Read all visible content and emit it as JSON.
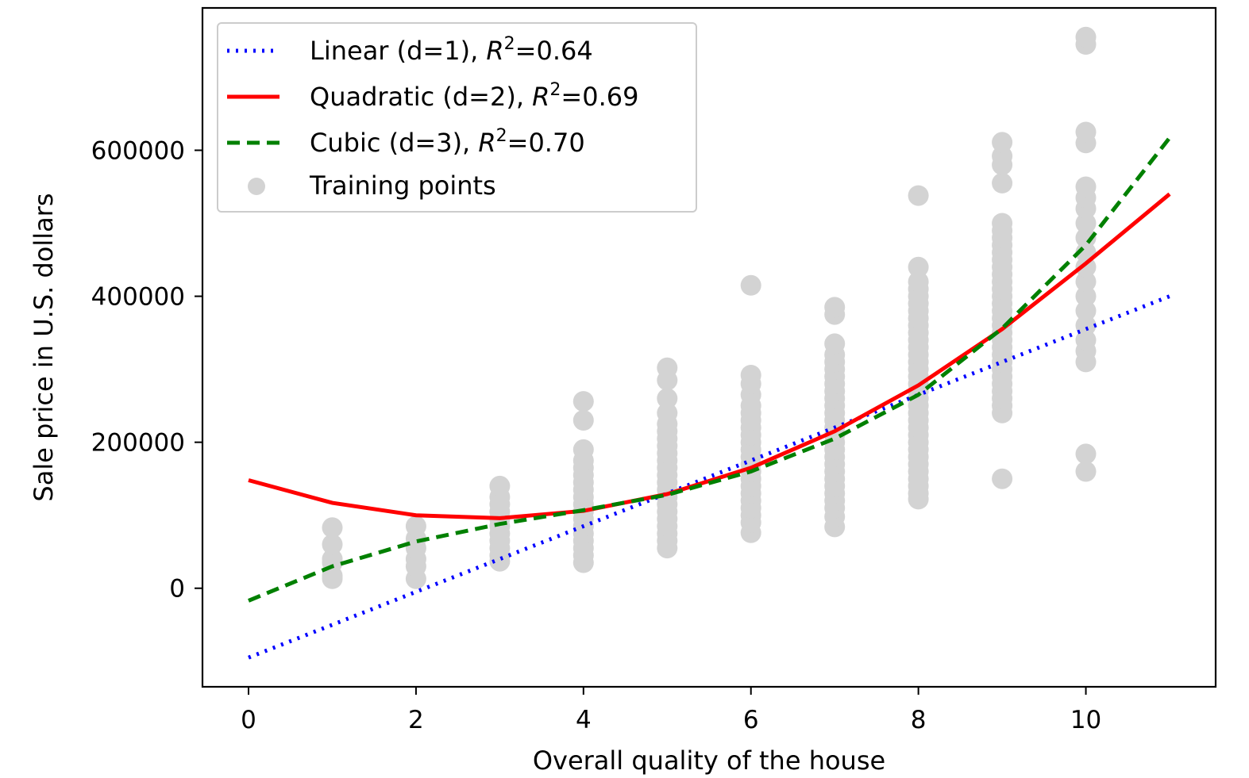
{
  "chart_data": {
    "type": "scatter",
    "xlabel": "Overall quality of the house",
    "ylabel": "Sale price in U.S. dollars",
    "xlim": [
      -0.55,
      11.55
    ],
    "ylim": [
      -135000,
      795000
    ],
    "xticks": [
      0,
      2,
      4,
      6,
      8,
      10
    ],
    "yticks": [
      0,
      200000,
      400000,
      600000
    ],
    "grid": false,
    "legend_position": "top-left",
    "series": [
      {
        "name": "Linear (d=1), R²=0.64",
        "legend_prefix": "Linear (d=1), ",
        "legend_r2": "=0.64",
        "kind": "line",
        "style": "dotted",
        "color": "#0000ff",
        "x": [
          0,
          1,
          2,
          3,
          4,
          5,
          6,
          7,
          8,
          9,
          10,
          11
        ],
        "y": [
          -95000,
          -50000,
          -5000,
          40000,
          85000,
          130000,
          175000,
          220000,
          265000,
          310000,
          355000,
          400000
        ]
      },
      {
        "name": "Quadratic (d=2), R²=0.69",
        "legend_prefix": "Quadratic (d=2), ",
        "legend_r2": "=0.69",
        "kind": "line",
        "style": "solid",
        "color": "#ff0000",
        "x": [
          0,
          1,
          2,
          3,
          4,
          5,
          6,
          7,
          8,
          9,
          10,
          11
        ],
        "y": [
          148000,
          117000,
          100000,
          96000,
          106000,
          129000,
          165000,
          215000,
          278000,
          355000,
          445000,
          540000
        ]
      },
      {
        "name": "Cubic (d=3), R²=0.70",
        "legend_prefix": "Cubic (d=3), ",
        "legend_r2": "=0.70",
        "kind": "line",
        "style": "dashed",
        "color": "#008000",
        "x": [
          0,
          1,
          2,
          3,
          4,
          5,
          6,
          7,
          8,
          9,
          10,
          11
        ],
        "y": [
          -17000,
          30000,
          64000,
          88000,
          107000,
          128000,
          160000,
          205000,
          265000,
          356000,
          470000,
          617000
        ]
      },
      {
        "name": "Training points",
        "kind": "scatter",
        "color": "#d3d3d3",
        "points": [
          [
            1,
            13000
          ],
          [
            1,
            17000
          ],
          [
            1,
            35000
          ],
          [
            1,
            40000
          ],
          [
            1,
            60000
          ],
          [
            1,
            83000
          ],
          [
            2,
            13000
          ],
          [
            2,
            30000
          ],
          [
            2,
            40000
          ],
          [
            2,
            55000
          ],
          [
            2,
            68000
          ],
          [
            2,
            85000
          ],
          [
            3,
            37000
          ],
          [
            3,
            45000
          ],
          [
            3,
            55000
          ],
          [
            3,
            65000
          ],
          [
            3,
            75000
          ],
          [
            3,
            85000
          ],
          [
            3,
            95000
          ],
          [
            3,
            105000
          ],
          [
            3,
            115000
          ],
          [
            3,
            125000
          ],
          [
            3,
            140000
          ],
          [
            4,
            35000
          ],
          [
            4,
            45000
          ],
          [
            4,
            55000
          ],
          [
            4,
            65000
          ],
          [
            4,
            75000
          ],
          [
            4,
            85000
          ],
          [
            4,
            95000
          ],
          [
            4,
            105000
          ],
          [
            4,
            115000
          ],
          [
            4,
            125000
          ],
          [
            4,
            135000
          ],
          [
            4,
            145000
          ],
          [
            4,
            155000
          ],
          [
            4,
            165000
          ],
          [
            4,
            175000
          ],
          [
            4,
            190000
          ],
          [
            4,
            230000
          ],
          [
            4,
            256000
          ],
          [
            5,
            55000
          ],
          [
            5,
            65000
          ],
          [
            5,
            75000
          ],
          [
            5,
            85000
          ],
          [
            5,
            95000
          ],
          [
            5,
            105000
          ],
          [
            5,
            115000
          ],
          [
            5,
            125000
          ],
          [
            5,
            135000
          ],
          [
            5,
            145000
          ],
          [
            5,
            155000
          ],
          [
            5,
            165000
          ],
          [
            5,
            175000
          ],
          [
            5,
            185000
          ],
          [
            5,
            195000
          ],
          [
            5,
            205000
          ],
          [
            5,
            215000
          ],
          [
            5,
            225000
          ],
          [
            5,
            240000
          ],
          [
            5,
            260000
          ],
          [
            5,
            285000
          ],
          [
            5,
            302000
          ],
          [
            6,
            76000
          ],
          [
            6,
            90000
          ],
          [
            6,
            100000
          ],
          [
            6,
            110000
          ],
          [
            6,
            120000
          ],
          [
            6,
            130000
          ],
          [
            6,
            140000
          ],
          [
            6,
            150000
          ],
          [
            6,
            160000
          ],
          [
            6,
            170000
          ],
          [
            6,
            180000
          ],
          [
            6,
            190000
          ],
          [
            6,
            200000
          ],
          [
            6,
            210000
          ],
          [
            6,
            220000
          ],
          [
            6,
            230000
          ],
          [
            6,
            240000
          ],
          [
            6,
            250000
          ],
          [
            6,
            265000
          ],
          [
            6,
            280000
          ],
          [
            6,
            292000
          ],
          [
            6,
            415000
          ],
          [
            7,
            84000
          ],
          [
            7,
            98000
          ],
          [
            7,
            110000
          ],
          [
            7,
            120000
          ],
          [
            7,
            130000
          ],
          [
            7,
            140000
          ],
          [
            7,
            150000
          ],
          [
            7,
            160000
          ],
          [
            7,
            170000
          ],
          [
            7,
            180000
          ],
          [
            7,
            190000
          ],
          [
            7,
            200000
          ],
          [
            7,
            210000
          ],
          [
            7,
            220000
          ],
          [
            7,
            230000
          ],
          [
            7,
            240000
          ],
          [
            7,
            250000
          ],
          [
            7,
            260000
          ],
          [
            7,
            270000
          ],
          [
            7,
            280000
          ],
          [
            7,
            290000
          ],
          [
            7,
            300000
          ],
          [
            7,
            310000
          ],
          [
            7,
            320000
          ],
          [
            7,
            335000
          ],
          [
            7,
            375000
          ],
          [
            7,
            385000
          ],
          [
            8,
            122000
          ],
          [
            8,
            130000
          ],
          [
            8,
            140000
          ],
          [
            8,
            150000
          ],
          [
            8,
            160000
          ],
          [
            8,
            170000
          ],
          [
            8,
            180000
          ],
          [
            8,
            190000
          ],
          [
            8,
            200000
          ],
          [
            8,
            210000
          ],
          [
            8,
            220000
          ],
          [
            8,
            230000
          ],
          [
            8,
            240000
          ],
          [
            8,
            250000
          ],
          [
            8,
            260000
          ],
          [
            8,
            270000
          ],
          [
            8,
            280000
          ],
          [
            8,
            290000
          ],
          [
            8,
            300000
          ],
          [
            8,
            310000
          ],
          [
            8,
            320000
          ],
          [
            8,
            330000
          ],
          [
            8,
            340000
          ],
          [
            8,
            350000
          ],
          [
            8,
            360000
          ],
          [
            8,
            370000
          ],
          [
            8,
            380000
          ],
          [
            8,
            390000
          ],
          [
            8,
            400000
          ],
          [
            8,
            410000
          ],
          [
            8,
            420000
          ],
          [
            8,
            440000
          ],
          [
            8,
            538000
          ],
          [
            9,
            150000
          ],
          [
            9,
            240000
          ],
          [
            9,
            250000
          ],
          [
            9,
            260000
          ],
          [
            9,
            270000
          ],
          [
            9,
            280000
          ],
          [
            9,
            290000
          ],
          [
            9,
            300000
          ],
          [
            9,
            310000
          ],
          [
            9,
            320000
          ],
          [
            9,
            330000
          ],
          [
            9,
            340000
          ],
          [
            9,
            350000
          ],
          [
            9,
            360000
          ],
          [
            9,
            370000
          ],
          [
            9,
            380000
          ],
          [
            9,
            390000
          ],
          [
            9,
            400000
          ],
          [
            9,
            410000
          ],
          [
            9,
            420000
          ],
          [
            9,
            430000
          ],
          [
            9,
            440000
          ],
          [
            9,
            450000
          ],
          [
            9,
            460000
          ],
          [
            9,
            470000
          ],
          [
            9,
            480000
          ],
          [
            9,
            490000
          ],
          [
            9,
            500000
          ],
          [
            9,
            555000
          ],
          [
            9,
            580000
          ],
          [
            9,
            592000
          ],
          [
            9,
            611000
          ],
          [
            10,
            160000
          ],
          [
            10,
            184000
          ],
          [
            10,
            310000
          ],
          [
            10,
            325000
          ],
          [
            10,
            340000
          ],
          [
            10,
            360000
          ],
          [
            10,
            380000
          ],
          [
            10,
            400000
          ],
          [
            10,
            420000
          ],
          [
            10,
            440000
          ],
          [
            10,
            460000
          ],
          [
            10,
            480000
          ],
          [
            10,
            500000
          ],
          [
            10,
            520000
          ],
          [
            10,
            535000
          ],
          [
            10,
            550000
          ],
          [
            10,
            610000
          ],
          [
            10,
            625000
          ],
          [
            10,
            745000
          ],
          [
            10,
            755000
          ]
        ]
      }
    ]
  }
}
